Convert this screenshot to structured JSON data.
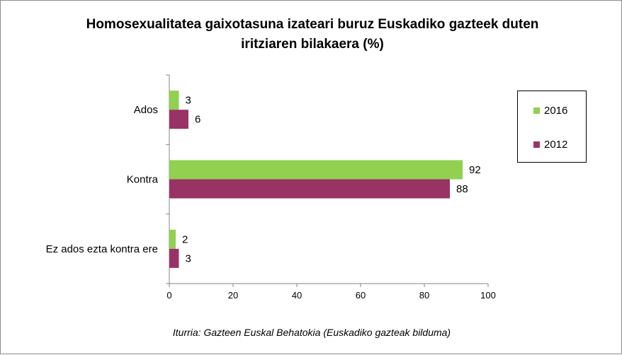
{
  "chart_data": {
    "type": "bar",
    "orientation": "horizontal",
    "title_lines": [
      "Homosexualitatea gaixotasuna izateari buruz Euskadiko gazteek duten",
      "iritziaren bilakaera (%)"
    ],
    "categories": [
      "Ados",
      "Kontra",
      "Ez ados ezta kontra ere"
    ],
    "series": [
      {
        "name": "2016",
        "values": [
          3,
          92,
          2
        ],
        "color": "#92d050"
      },
      {
        "name": "2012",
        "values": [
          6,
          88,
          3
        ],
        "color": "#993366"
      }
    ],
    "xlim": [
      0,
      100
    ],
    "x_ticks": [
      0,
      20,
      40,
      60,
      80,
      100
    ],
    "grid": false,
    "legend_position": "right",
    "source": "Iturria: Gazteen Euskal Behatokia (Euskadiko gazteak bilduma)"
  }
}
